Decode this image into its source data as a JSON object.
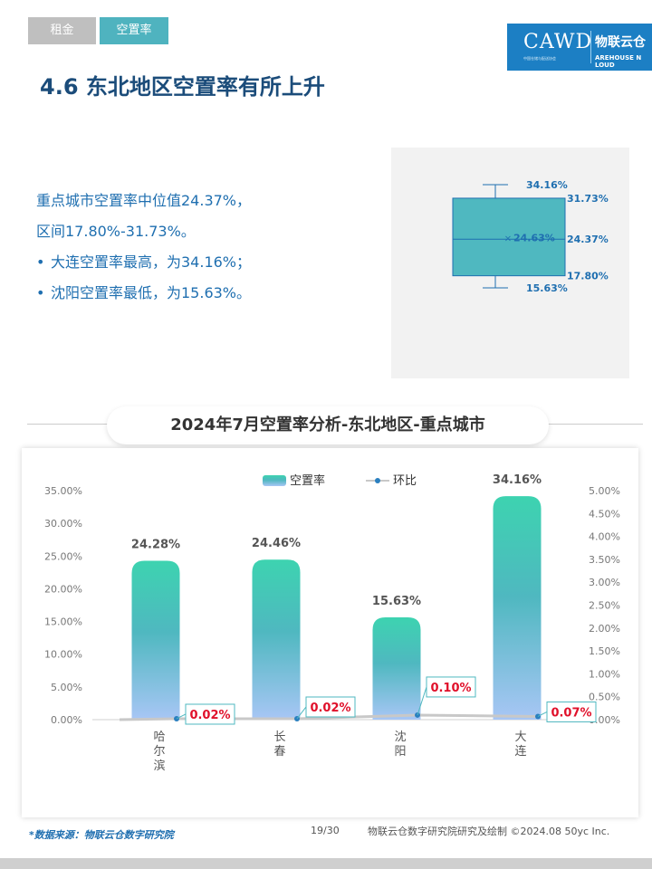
{
  "tabs": [
    {
      "label": "租金"
    },
    {
      "label": "空置率"
    }
  ],
  "logo": {
    "brand": "CAWD",
    "subtitle": "中国仓储与配送协会",
    "cn_name": "物联云仓",
    "en_name": "AREHOUSE N LOUD"
  },
  "page_title": "4.6 东北地区空置率有所上升",
  "summary": {
    "line1": "重点城市空置率中位值24.37%，",
    "line2": "区间17.80%-31.73%。",
    "bullet1": "大连空置率最高，为34.16%；",
    "bullet2": "沈阳空置率最低，为15.63%。"
  },
  "boxplot": {
    "max_label": "34.16%",
    "q3_label": "31.73%",
    "mean_label": "24.63%",
    "median_label": "24.37%",
    "q1_label": "17.80%",
    "min_label": "15.63%",
    "max": 34.16,
    "q3": 31.73,
    "median": 24.37,
    "mean": 24.63,
    "q1": 17.8,
    "min": 15.63,
    "color": "#4fb8c0"
  },
  "chart_title": "2024年7月空置率分析-东北地区-重点城市",
  "chart_data": {
    "type": "bar",
    "categories": [
      "哈尔滨",
      "长春",
      "沈阳",
      "大连"
    ],
    "series": [
      {
        "name": "空置率",
        "type": "bar",
        "axis": "left",
        "values": [
          24.28,
          24.46,
          15.63,
          34.16
        ],
        "labels": [
          "24.28%",
          "24.46%",
          "15.63%",
          "34.16%"
        ]
      },
      {
        "name": "环比",
        "type": "line",
        "axis": "right",
        "values": [
          0.02,
          0.02,
          0.1,
          0.07
        ],
        "labels": [
          "0.02%",
          "0.02%",
          "0.10%",
          "0.07%"
        ]
      }
    ],
    "left_axis": {
      "min": 0,
      "max": 35,
      "step": 5,
      "ticks": [
        "0.00%",
        "5.00%",
        "10.00%",
        "15.00%",
        "20.00%",
        "25.00%",
        "30.00%",
        "35.00%"
      ]
    },
    "right_axis": {
      "min": 0,
      "max": 5,
      "step": 0.5,
      "ticks": [
        "0.00%",
        "0.50%",
        "1.00%",
        "1.50%",
        "2.00%",
        "2.50%",
        "3.00%",
        "3.50%",
        "4.00%",
        "4.50%",
        "5.00%"
      ]
    },
    "legend_position": "top-center",
    "colors": {
      "bar_top": "#3dd3b0",
      "bar_mid": "#4fb8c0",
      "bar_bottom": "#a8c6f5",
      "line": "#c8c8c8",
      "marker": "#2a7fbf",
      "ratio_label": "#e0102a",
      "ratio_border": "#4fb8c0"
    }
  },
  "footer": {
    "source": "*数据来源：物联云仓数字研究院",
    "page": "19/30",
    "credit": "物联云仓数字研究院研究及绘制  ©2024.08 50yc Inc."
  }
}
